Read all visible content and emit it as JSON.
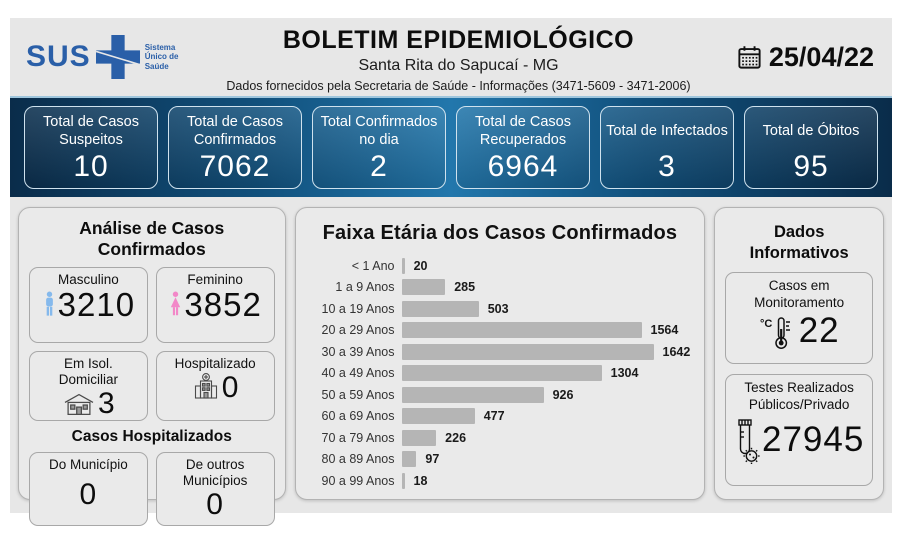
{
  "header": {
    "logo_text": "SUS",
    "logo_tagline": "Sistema Único de Saúde",
    "title": "BOLETIM EPIDEMIOLÓGICO",
    "subtitle": "Santa Rita do Sapucaí - MG",
    "info_line": "Dados fornecidos pela Secretaria de Saúde - Informações (3471-5609 - 3471-2006)",
    "date": "25/04/22"
  },
  "stats": {
    "cards": [
      {
        "label": "Total de Casos Suspeitos",
        "value": "10"
      },
      {
        "label": "Total de Casos Confirmados",
        "value": "7062"
      },
      {
        "label": "Total Confirmados no dia",
        "value": "2"
      },
      {
        "label": "Total de Casos Recuperados",
        "value": "6964"
      },
      {
        "label": "Total de Infectados",
        "value": "3"
      },
      {
        "label": "Total de Óbitos",
        "value": "95"
      }
    ]
  },
  "analysis": {
    "title": "Análise de Casos Confirmados",
    "male": {
      "label": "Masculino",
      "value": "3210",
      "icon": "male-icon"
    },
    "female": {
      "label": "Feminino",
      "value": "3852",
      "icon": "female-icon"
    },
    "isolation": {
      "label": "Em Isol. Domiciliar",
      "value": "3",
      "icon": "house-icon"
    },
    "hospitalized": {
      "label": "Hospitalizado",
      "value": "0",
      "icon": "hospital-icon"
    },
    "hospital_section_title": "Casos Hospitalizados",
    "from_city": {
      "label": "Do Município",
      "value": "0"
    },
    "other_cities": {
      "label": "De outros Municípios",
      "value": "0"
    }
  },
  "chart_data": {
    "type": "bar",
    "orientation": "horizontal",
    "title": "Faixa Etária dos Casos Confirmados",
    "categories": [
      "< 1 Ano",
      "1 a 9 Anos",
      "10 a 19 Anos",
      "20 a 29 Anos",
      "30 a 39 Anos",
      "40 a 49 Anos",
      "50 a 59 Anos",
      "60 a 69 Anos",
      "70 a 79 Anos",
      "80 a 89 Anos",
      "90 a 99 Anos"
    ],
    "values": [
      20,
      285,
      503,
      1564,
      1642,
      1304,
      926,
      477,
      226,
      97,
      18
    ],
    "xlim": [
      0,
      1700
    ],
    "grid": false,
    "legend": false,
    "data_labels": true,
    "bar_color": "#b5b5b5"
  },
  "info_panel": {
    "title": "Dados Informativos",
    "monitoring": {
      "label": "Casos em Monitoramento",
      "value": "22",
      "icon": "thermometer-icon"
    },
    "tests": {
      "label": "Testes Realizados Públicos/Privado",
      "value": "27945",
      "icon": "test-tube-icon"
    }
  },
  "colors": {
    "strip_dark": "#0a2c4a",
    "strip_light": "#2277ac",
    "sus_blue": "#2a5fa8",
    "male_blue": "#85b9ec",
    "female_pink": "#f288c8",
    "bar_gray": "#b5b5b5",
    "background_gray": "#e7e7e7"
  }
}
